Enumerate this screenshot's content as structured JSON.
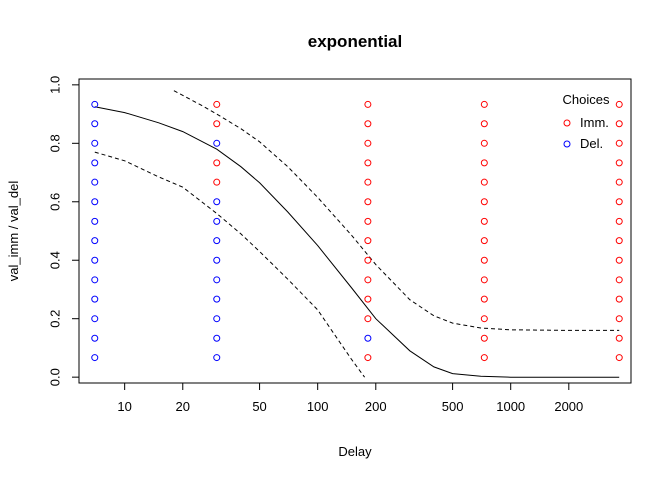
{
  "chart_data": {
    "type": "scatter",
    "title": "exponential",
    "xlabel": "Delay",
    "ylabel": "val_imm / val_del",
    "x_scale": "log",
    "xlim": [
      5.8,
      4200
    ],
    "ylim": [
      -0.02,
      1.02
    ],
    "x_ticks": [
      10,
      20,
      50,
      100,
      200,
      500,
      1000,
      2000
    ],
    "y_ticks": [
      0.0,
      0.2,
      0.4,
      0.6,
      0.8,
      1.0
    ],
    "x_tick_labels": [
      "10",
      "20",
      "50",
      "100",
      "200",
      "500",
      "1000",
      "2000"
    ],
    "y_tick_labels": [
      "0.0",
      "0.2",
      "0.4",
      "0.6",
      "0.8",
      "1.0"
    ],
    "grid": false,
    "legend": {
      "title": "Choices",
      "position": "top-right",
      "entries": [
        {
          "label": "Imm.",
          "color": "#ff0000",
          "marker": "open-circle"
        },
        {
          "label": "Del.",
          "color": "#0000ff",
          "marker": "open-circle"
        }
      ]
    },
    "series": [
      {
        "name": "Imm.",
        "color": "#ff0000",
        "marker": "open-circle",
        "points": [
          [
            30,
            0.667
          ],
          [
            30,
            0.733
          ],
          [
            30,
            0.867
          ],
          [
            30,
            0.933
          ],
          [
            182,
            0.067
          ],
          [
            182,
            0.2
          ],
          [
            182,
            0.267
          ],
          [
            182,
            0.333
          ],
          [
            182,
            0.4
          ],
          [
            182,
            0.467
          ],
          [
            182,
            0.533
          ],
          [
            182,
            0.6
          ],
          [
            182,
            0.667
          ],
          [
            182,
            0.733
          ],
          [
            182,
            0.8
          ],
          [
            182,
            0.867
          ],
          [
            182,
            0.933
          ],
          [
            730,
            0.067
          ],
          [
            730,
            0.133
          ],
          [
            730,
            0.2
          ],
          [
            730,
            0.267
          ],
          [
            730,
            0.333
          ],
          [
            730,
            0.4
          ],
          [
            730,
            0.467
          ],
          [
            730,
            0.533
          ],
          [
            730,
            0.6
          ],
          [
            730,
            0.667
          ],
          [
            730,
            0.733
          ],
          [
            730,
            0.8
          ],
          [
            730,
            0.867
          ],
          [
            730,
            0.933
          ],
          [
            3650,
            0.067
          ],
          [
            3650,
            0.133
          ],
          [
            3650,
            0.2
          ],
          [
            3650,
            0.267
          ],
          [
            3650,
            0.333
          ],
          [
            3650,
            0.4
          ],
          [
            3650,
            0.467
          ],
          [
            3650,
            0.533
          ],
          [
            3650,
            0.6
          ],
          [
            3650,
            0.667
          ],
          [
            3650,
            0.733
          ],
          [
            3650,
            0.8
          ],
          [
            3650,
            0.867
          ],
          [
            3650,
            0.933
          ]
        ]
      },
      {
        "name": "Del.",
        "color": "#0000ff",
        "marker": "open-circle",
        "points": [
          [
            7,
            0.067
          ],
          [
            7,
            0.133
          ],
          [
            7,
            0.2
          ],
          [
            7,
            0.267
          ],
          [
            7,
            0.333
          ],
          [
            7,
            0.4
          ],
          [
            7,
            0.467
          ],
          [
            7,
            0.533
          ],
          [
            7,
            0.6
          ],
          [
            7,
            0.667
          ],
          [
            7,
            0.733
          ],
          [
            7,
            0.8
          ],
          [
            7,
            0.867
          ],
          [
            7,
            0.933
          ],
          [
            30,
            0.067
          ],
          [
            30,
            0.133
          ],
          [
            30,
            0.2
          ],
          [
            30,
            0.267
          ],
          [
            30,
            0.333
          ],
          [
            30,
            0.4
          ],
          [
            30,
            0.467
          ],
          [
            30,
            0.533
          ],
          [
            30,
            0.6
          ],
          [
            30,
            0.8
          ],
          [
            182,
            0.133
          ]
        ]
      }
    ],
    "curves": [
      {
        "style": "solid",
        "color": "#000000",
        "points": [
          [
            7,
            0.925
          ],
          [
            10,
            0.905
          ],
          [
            15,
            0.87
          ],
          [
            20,
            0.84
          ],
          [
            30,
            0.78
          ],
          [
            40,
            0.72
          ],
          [
            50,
            0.665
          ],
          [
            70,
            0.565
          ],
          [
            100,
            0.45
          ],
          [
            150,
            0.305
          ],
          [
            200,
            0.2
          ],
          [
            300,
            0.09
          ],
          [
            400,
            0.035
          ],
          [
            500,
            0.012
          ],
          [
            700,
            0.003
          ],
          [
            1000,
            0.0
          ],
          [
            2000,
            0.0
          ],
          [
            3650,
            0.0
          ]
        ]
      },
      {
        "style": "dashed",
        "color": "#000000",
        "points": [
          [
            18,
            0.98
          ],
          [
            25,
            0.93
          ],
          [
            30,
            0.9
          ],
          [
            40,
            0.85
          ],
          [
            50,
            0.805
          ],
          [
            70,
            0.72
          ],
          [
            100,
            0.615
          ],
          [
            150,
            0.485
          ],
          [
            200,
            0.385
          ],
          [
            300,
            0.265
          ],
          [
            400,
            0.21
          ],
          [
            500,
            0.185
          ],
          [
            700,
            0.168
          ],
          [
            1000,
            0.162
          ],
          [
            2000,
            0.16
          ],
          [
            3650,
            0.16
          ]
        ]
      },
      {
        "style": "dashed",
        "color": "#000000",
        "points": [
          [
            7,
            0.77
          ],
          [
            10,
            0.74
          ],
          [
            15,
            0.685
          ],
          [
            20,
            0.65
          ],
          [
            30,
            0.56
          ],
          [
            40,
            0.49
          ],
          [
            50,
            0.43
          ],
          [
            70,
            0.335
          ],
          [
            100,
            0.23
          ],
          [
            130,
            0.12
          ],
          [
            150,
            0.06
          ],
          [
            175,
            0.0
          ]
        ]
      }
    ]
  }
}
